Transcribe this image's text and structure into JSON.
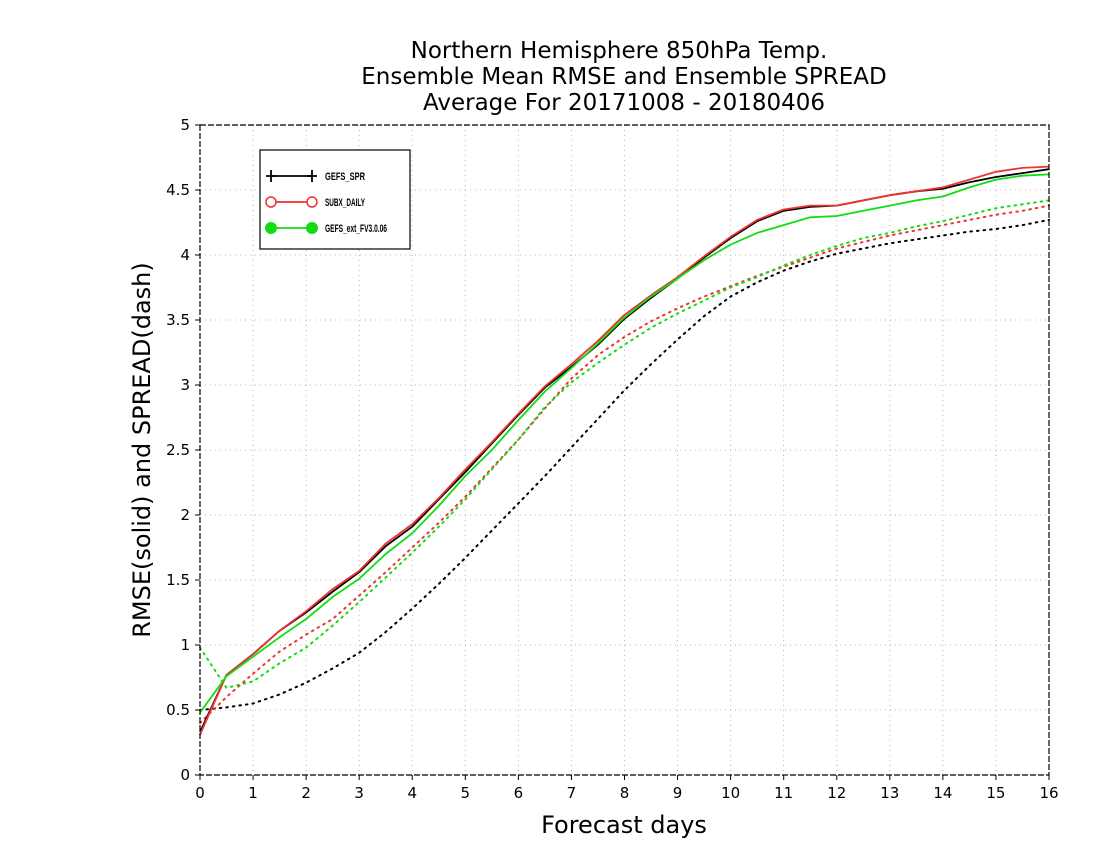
{
  "chart_data": {
    "type": "line",
    "title": [
      "Northern Hemisphere 850hPa Temp.",
      "Ensemble Mean RMSE and Ensemble SPREAD",
      "Average For 20171008 - 20180406"
    ],
    "xlabel": "Forecast days",
    "ylabel": "RMSE(solid) and SPREAD(dash)",
    "xlim": [
      0,
      16
    ],
    "ylim": [
      0,
      5
    ],
    "x_ticks": [
      "0",
      "1",
      "2",
      "3",
      "4",
      "5",
      "6",
      "7",
      "8",
      "9",
      "10",
      "11",
      "12",
      "13",
      "14",
      "15",
      "16"
    ],
    "y_ticks": [
      "0",
      "0.5",
      "1",
      "1.5",
      "2",
      "2.5",
      "3",
      "3.5",
      "4",
      "4.5",
      "5"
    ],
    "grid": true,
    "legend_position": "top-left",
    "x": [
      0,
      0.5,
      1,
      1.5,
      2,
      2.5,
      3,
      3.5,
      4,
      4.5,
      5,
      5.5,
      6,
      6.5,
      7,
      7.5,
      8,
      8.5,
      9,
      9.5,
      10,
      10.5,
      11,
      11.5,
      12,
      12.5,
      13,
      13.5,
      14,
      14.5,
      15,
      15.5,
      16
    ],
    "series": [
      {
        "name": "GEFS_SPR",
        "color": "#000000",
        "marker": "plus",
        "rmse": [
          0.33,
          0.77,
          0.93,
          1.11,
          1.25,
          1.41,
          1.56,
          1.76,
          1.91,
          2.12,
          2.33,
          2.55,
          2.77,
          2.98,
          3.14,
          3.31,
          3.51,
          3.67,
          3.82,
          3.98,
          4.13,
          4.26,
          4.34,
          4.37,
          4.38,
          4.42,
          4.46,
          4.49,
          4.51,
          4.56,
          4.6,
          4.63,
          4.66
        ],
        "spread": [
          0.5,
          0.52,
          0.55,
          0.62,
          0.71,
          0.82,
          0.94,
          1.1,
          1.28,
          1.47,
          1.67,
          1.88,
          2.09,
          2.3,
          2.52,
          2.74,
          2.96,
          3.16,
          3.35,
          3.53,
          3.68,
          3.79,
          3.88,
          3.95,
          4.01,
          4.05,
          4.09,
          4.12,
          4.15,
          4.18,
          4.2,
          4.23,
          4.27
        ]
      },
      {
        "name": "SUBX_DAILY",
        "color": "#ee3333",
        "marker": "circle",
        "rmse": [
          0.31,
          0.77,
          0.93,
          1.11,
          1.26,
          1.43,
          1.57,
          1.78,
          1.93,
          2.13,
          2.35,
          2.56,
          2.78,
          2.99,
          3.16,
          3.34,
          3.54,
          3.69,
          3.83,
          3.99,
          4.14,
          4.27,
          4.35,
          4.38,
          4.38,
          4.42,
          4.46,
          4.49,
          4.52,
          4.58,
          4.64,
          4.67,
          4.68
        ],
        "spread": [
          0.4,
          0.6,
          0.78,
          0.95,
          1.08,
          1.2,
          1.38,
          1.56,
          1.75,
          1.94,
          2.14,
          2.36,
          2.58,
          2.82,
          3.05,
          3.23,
          3.37,
          3.49,
          3.59,
          3.68,
          3.76,
          3.84,
          3.91,
          3.98,
          4.05,
          4.1,
          4.15,
          4.19,
          4.23,
          4.27,
          4.31,
          4.34,
          4.38
        ]
      },
      {
        "name": "GEFS_ext_FV3.0.06",
        "color": "#11dd11",
        "marker": "dot",
        "rmse": [
          0.48,
          0.76,
          0.91,
          1.06,
          1.2,
          1.37,
          1.51,
          1.7,
          1.86,
          2.07,
          2.3,
          2.5,
          2.73,
          2.95,
          3.13,
          3.32,
          3.52,
          3.68,
          3.82,
          3.96,
          4.08,
          4.17,
          4.23,
          4.29,
          4.3,
          4.34,
          4.38,
          4.42,
          4.45,
          4.52,
          4.58,
          4.61,
          4.62
        ],
        "spread": [
          0.98,
          0.67,
          0.72,
          0.86,
          0.98,
          1.15,
          1.33,
          1.52,
          1.71,
          1.91,
          2.12,
          2.35,
          2.58,
          2.83,
          3.02,
          3.17,
          3.31,
          3.44,
          3.55,
          3.65,
          3.75,
          3.83,
          3.92,
          4.0,
          4.07,
          4.13,
          4.17,
          4.22,
          4.26,
          4.31,
          4.36,
          4.39,
          4.42
        ]
      }
    ]
  }
}
